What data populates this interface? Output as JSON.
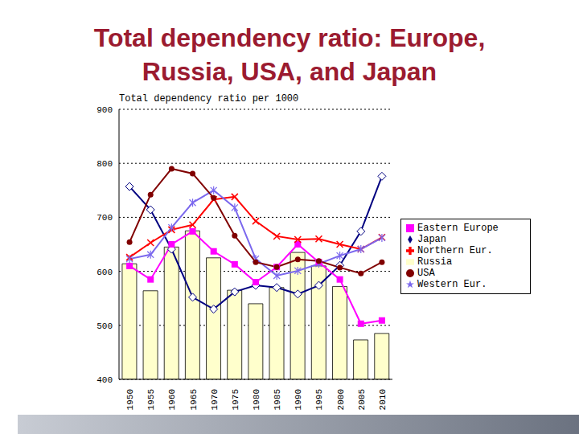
{
  "chart_data": {
    "type": "bar",
    "title": "Total dependency ratio: Europe, Russia, USA, and Japan",
    "subtitle": "Total dependency ratio per 1000",
    "categories": [
      "1950",
      "1955",
      "1960",
      "1965",
      "1970",
      "1975",
      "1980",
      "1985",
      "1990",
      "1995",
      "2000",
      "2005",
      "2010"
    ],
    "series": [
      {
        "name": "Russia",
        "type": "bar",
        "color": "#ffffcc",
        "values": [
          614,
          564,
          645,
          675,
          625,
          565,
          540,
          570,
          635,
          610,
          572,
          473,
          485
        ]
      },
      {
        "name": "Japan",
        "type": "line",
        "color": "#000080",
        "marker": "diamond",
        "values": [
          757,
          714,
          641,
          552,
          530,
          562,
          574,
          570,
          558,
          574,
          611,
          674,
          776
        ]
      },
      {
        "name": "Eastern Europe",
        "type": "line",
        "color": "#ff00ff",
        "marker": "square",
        "values": [
          610,
          585,
          650,
          674,
          637,
          613,
          580,
          608,
          650,
          617,
          585,
          503,
          509
        ]
      },
      {
        "name": "Northern Eur.",
        "type": "line",
        "color": "#ff0000",
        "marker": "x",
        "values": [
          626,
          653,
          677,
          686,
          733,
          738,
          693,
          665,
          659,
          660,
          650,
          641,
          663
        ]
      },
      {
        "name": "Western Eur.",
        "type": "line",
        "color": "#7b68ee",
        "marker": "star",
        "values": [
          623,
          631,
          681,
          727,
          750,
          718,
          623,
          592,
          601,
          614,
          629,
          641,
          662
        ]
      },
      {
        "name": "USA",
        "type": "line",
        "color": "#800000",
        "marker": "circle",
        "values": [
          654,
          742,
          790,
          781,
          736,
          666,
          617,
          608,
          622,
          619,
          607,
          596,
          617
        ]
      }
    ],
    "ylim": [
      400,
      900
    ],
    "yticks": [
      400,
      500,
      600,
      700,
      800,
      900
    ],
    "grid": true,
    "legend": "right"
  }
}
